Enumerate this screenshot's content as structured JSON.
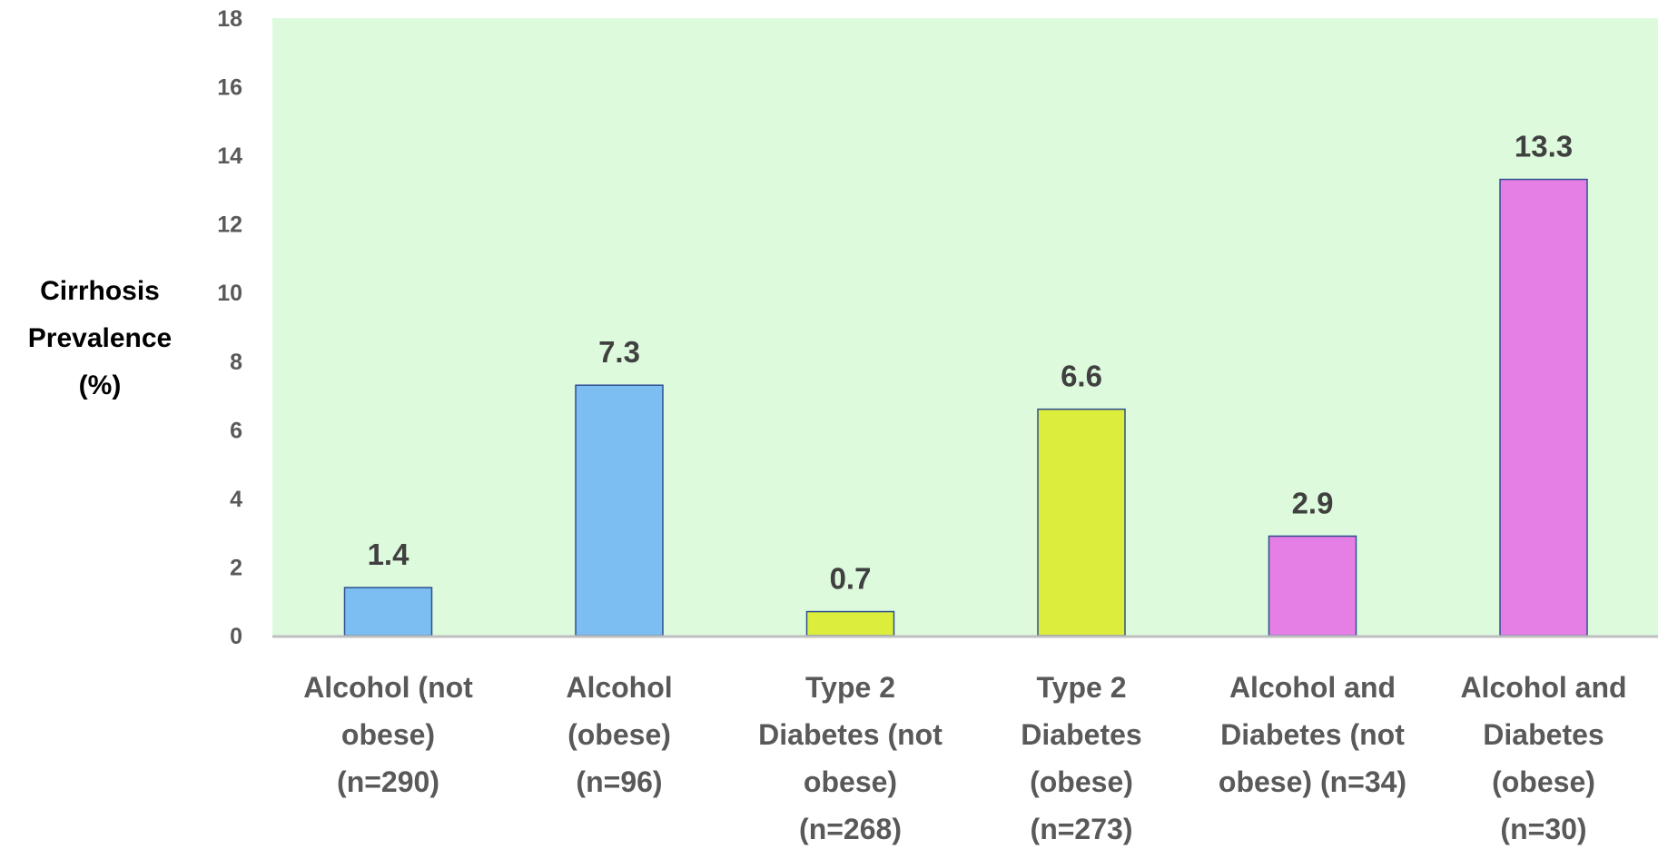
{
  "chart_data": {
    "type": "bar",
    "title": "",
    "xlabel": "",
    "ylabel_lines": [
      "Cirrhosis",
      "Prevalence",
      "(%)"
    ],
    "ylim": [
      0,
      18
    ],
    "yticks": [
      0,
      2,
      4,
      6,
      8,
      10,
      12,
      14,
      16,
      18
    ],
    "grid": false,
    "legend": "none",
    "plot_background": "#ddfadd",
    "categories": [
      [
        "Alcohol (not",
        "obese)",
        "(n=290)"
      ],
      [
        "Alcohol",
        "(obese)",
        "(n=96)"
      ],
      [
        "Type 2",
        "Diabetes (not",
        "obese)",
        "(n=268)"
      ],
      [
        "Type 2",
        "Diabetes",
        "(obese)",
        "(n=273)"
      ],
      [
        "Alcohol and",
        "Diabetes (not",
        "obese) (n=34)"
      ],
      [
        "Alcohol and",
        "Diabetes",
        "(obese)",
        "(n=30)"
      ]
    ],
    "values": [
      1.4,
      7.3,
      0.7,
      6.6,
      2.9,
      13.3
    ],
    "value_labels": [
      "1.4",
      "7.3",
      "0.7",
      "6.6",
      "2.9",
      "13.3"
    ],
    "bar_colors": [
      "#7cbdf2",
      "#7cbdf2",
      "#dded3b",
      "#dded3b",
      "#e57ee5",
      "#e57ee5"
    ],
    "bar_outline": "#2f4f8f"
  }
}
